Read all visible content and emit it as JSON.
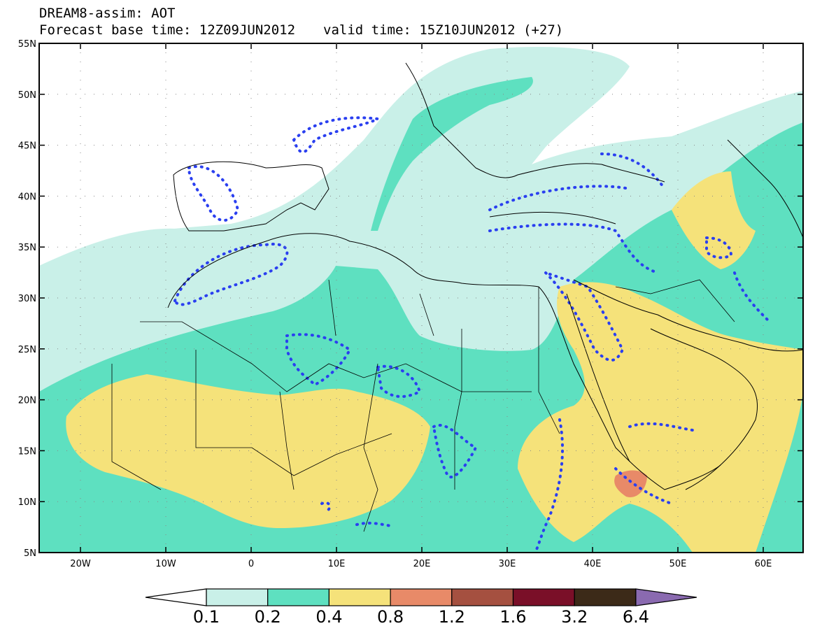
{
  "title": {
    "line1": "DREAM8-assim: AOT",
    "base_time": "Forecast base time: 12Z09JUN2012",
    "valid_time": "valid time: 15Z10JUN2012 (+27)"
  },
  "map": {
    "lat_labels": [
      "55N",
      "50N",
      "45N",
      "40N",
      "35N",
      "30N",
      "25N",
      "20N",
      "15N",
      "10N",
      "5N"
    ],
    "lon_labels": [
      "20W",
      "10W",
      "0",
      "10E",
      "20E",
      "30E",
      "40E",
      "50E",
      "60E"
    ]
  },
  "colorbar": {
    "colors": [
      "#ffffff",
      "#c9f0e8",
      "#5ee0c0",
      "#f5e27a",
      "#e88a68",
      "#a55040",
      "#7a0f28",
      "#3c2a18",
      "#8a6ab0"
    ],
    "labels": [
      "0.1",
      "0.2",
      "0.4",
      "0.8",
      "1.2",
      "1.6",
      "3.2",
      "6.4"
    ]
  }
}
